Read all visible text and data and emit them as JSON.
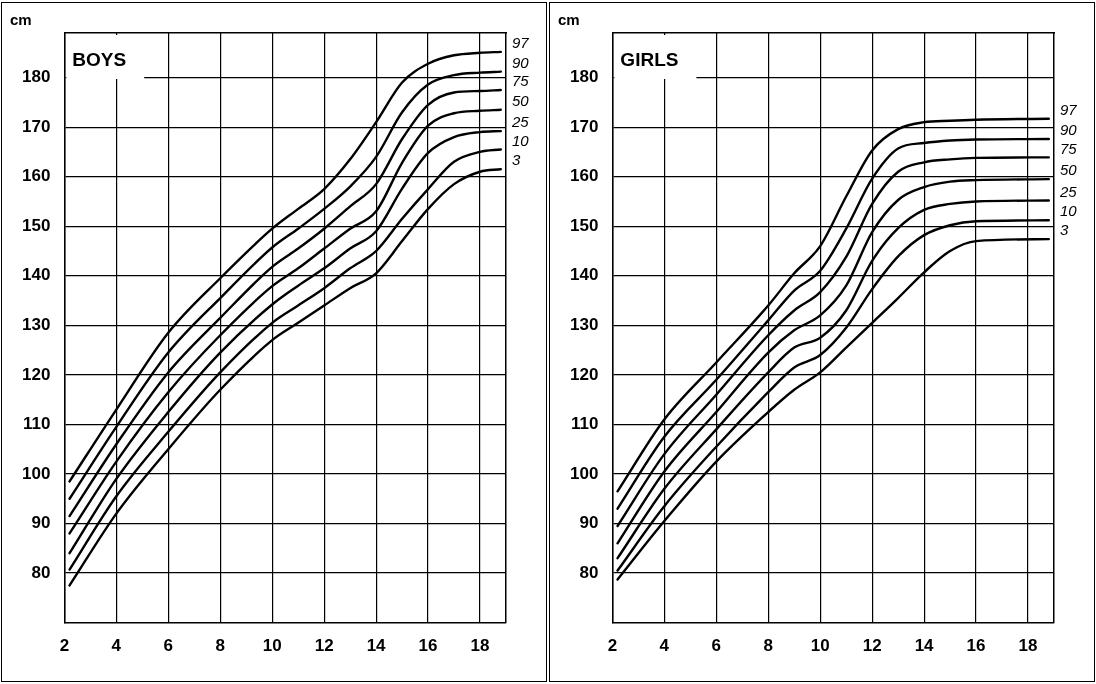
{
  "chart_data": [
    {
      "type": "line",
      "title": "BOYS",
      "ylabel": "cm",
      "x": [
        2.2,
        4,
        6,
        8,
        10,
        11,
        12,
        13,
        14,
        15,
        16,
        17,
        18,
        18.8
      ],
      "xlim": [
        2,
        19
      ],
      "xticks": [
        2,
        4,
        6,
        8,
        10,
        12,
        14,
        16,
        18
      ],
      "ylim": [
        70,
        189
      ],
      "yticks": [
        80,
        90,
        100,
        110,
        120,
        130,
        140,
        150,
        160,
        170,
        180
      ],
      "grid": true,
      "legend": false,
      "marker": "none",
      "line_style": "solid",
      "series": [
        {
          "name": "97",
          "color": "#000000",
          "values": [
            98.5,
            113,
            128.5,
            139.5,
            149.5,
            153.5,
            157.5,
            163.5,
            171,
            179,
            182.8,
            184.5,
            185,
            185.2
          ]
        },
        {
          "name": "90",
          "color": "#000000",
          "values": [
            95,
            109.5,
            124.5,
            135.5,
            145.7,
            149.5,
            153.5,
            158,
            164,
            173,
            178.6,
            180.5,
            181,
            181.2
          ]
        },
        {
          "name": "75",
          "color": "#000000",
          "values": [
            91.5,
            106,
            120.5,
            131.5,
            141.8,
            145.5,
            149.5,
            154,
            158.5,
            167.6,
            174.5,
            177,
            177.3,
            177.5
          ]
        },
        {
          "name": "50",
          "color": "#000000",
          "values": [
            88,
            102.5,
            116.5,
            128,
            137.9,
            141.5,
            145.5,
            149.5,
            153,
            162.8,
            170.3,
            172.8,
            173.3,
            173.5
          ]
        },
        {
          "name": "25",
          "color": "#000000",
          "values": [
            84,
            99,
            112.5,
            124.5,
            134.2,
            138,
            141.5,
            145.5,
            149,
            157.6,
            164.8,
            168,
            169,
            169.2
          ]
        },
        {
          "name": "10",
          "color": "#000000",
          "values": [
            80.7,
            95.5,
            108.5,
            120.5,
            130.5,
            134,
            137.5,
            141.5,
            145,
            151.5,
            157.5,
            163,
            165,
            165.5
          ]
        },
        {
          "name": "3",
          "color": "#000000",
          "values": [
            77.5,
            92,
            105,
            117,
            127,
            130.5,
            134,
            137.5,
            140.5,
            147,
            153.5,
            158.5,
            161,
            161.5
          ]
        }
      ]
    },
    {
      "type": "line",
      "title": "GIRLS",
      "ylabel": "cm",
      "x": [
        2.2,
        4,
        6,
        8,
        9,
        10,
        11,
        12,
        13,
        14,
        15,
        16,
        18.8
      ],
      "xlim": [
        2,
        19
      ],
      "xticks": [
        2,
        4,
        6,
        8,
        10,
        12,
        14,
        16,
        18
      ],
      "ylim": [
        70,
        189
      ],
      "yticks": [
        80,
        90,
        100,
        110,
        120,
        130,
        140,
        150,
        160,
        170,
        180
      ],
      "grid": true,
      "legend": false,
      "marker": "none",
      "line_style": "solid",
      "series": [
        {
          "name": "97",
          "color": "#000000",
          "values": [
            96.5,
            111,
            122.5,
            134,
            140.5,
            146,
            156,
            165.3,
            169.6,
            171,
            171.3,
            171.5,
            171.7
          ]
        },
        {
          "name": "90",
          "color": "#000000",
          "values": [
            93,
            107.5,
            119,
            131,
            137,
            141,
            149.5,
            159.6,
            165.7,
            166.8,
            167.3,
            167.5,
            167.6
          ]
        },
        {
          "name": "75",
          "color": "#000000",
          "values": [
            89.5,
            104,
            116,
            128,
            133,
            136.7,
            143.8,
            154.5,
            161,
            162.9,
            163.5,
            163.8,
            163.9
          ]
        },
        {
          "name": "50",
          "color": "#000000",
          "values": [
            86,
            100.5,
            112.5,
            124.5,
            129,
            132,
            138,
            148.8,
            155.3,
            157.9,
            159,
            159.3,
            159.5
          ]
        },
        {
          "name": "25",
          "color": "#000000",
          "values": [
            83,
            97,
            109,
            120.5,
            125.5,
            127.5,
            133,
            143,
            149.6,
            153.3,
            154.5,
            155,
            155.2
          ]
        },
        {
          "name": "10",
          "color": "#000000",
          "values": [
            80.5,
            93.5,
            105.5,
            116.5,
            121.5,
            124,
            129.5,
            137.3,
            143.9,
            148.2,
            150.2,
            151,
            151.2
          ]
        },
        {
          "name": "3",
          "color": "#000000",
          "values": [
            78.7,
            90.5,
            102.5,
            112.5,
            117,
            120.5,
            125.5,
            130.5,
            135.5,
            140.7,
            145,
            147,
            147.4
          ]
        }
      ]
    }
  ]
}
